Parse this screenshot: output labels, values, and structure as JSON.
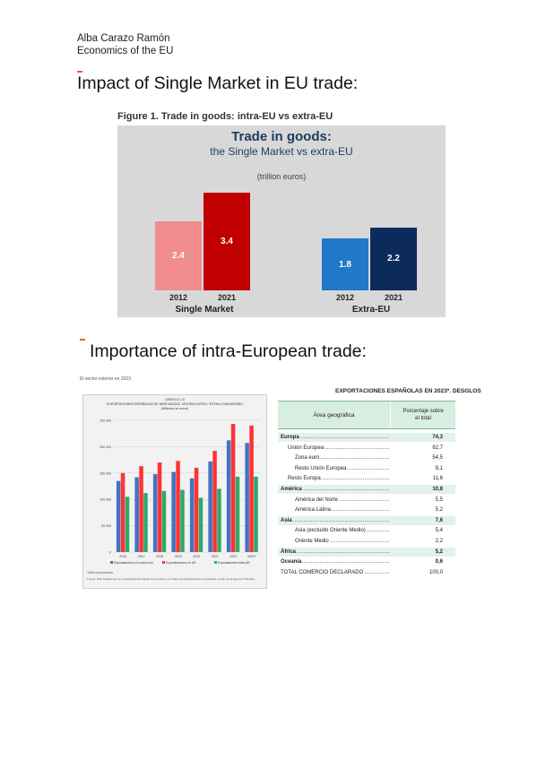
{
  "header": {
    "author": "Alba Carazo Ramón",
    "course": "Economics of the EU"
  },
  "sections": [
    {
      "title": "Impact of  Single Market in EU trade:"
    },
    {
      "title": "Importance of intra-European trade:"
    }
  ],
  "figure1": {
    "caption": "Figure 1. Trade in goods: intra-EU vs extra-EU",
    "title": "Trade in goods:",
    "subtitle": "the Single Market vs extra-EU",
    "unit": "(trillion euros)",
    "groups": [
      {
        "name": "Single Market",
        "bars": [
          {
            "year": "2012",
            "value": 2.4,
            "label": "2.4",
            "color": "#f08c8c"
          },
          {
            "year": "2021",
            "value": 3.4,
            "label": "3.4",
            "color": "#c00000"
          }
        ]
      },
      {
        "name": "Extra-EU",
        "bars": [
          {
            "year": "2012",
            "value": 1.8,
            "label": "1.8",
            "color": "#1f78c8"
          },
          {
            "year": "2021",
            "value": 2.2,
            "label": "2.2",
            "color": "#0d2a5c"
          }
        ]
      }
    ]
  },
  "figure2": {
    "header": "El sector exterior en 2023",
    "g1": "GRÁFICO 1.6",
    "g2": "EXPORTACIONES ESPAÑOLAS DE MERCANCÍAS, DESTINO INTRA Y EXTRA COMUNITARIO",
    "g3": "(Millones de euros)",
    "y_ticks": [
      "250.000",
      "200.000",
      "150.000",
      "100.000",
      "50.000",
      "0"
    ],
    "ymax": 250000,
    "years": [
      "2016",
      "2017",
      "2018",
      "2019",
      "2020",
      "2021",
      "2022",
      "2023*"
    ],
    "series": [
      {
        "name": "Exportaciones a la zona euro",
        "color": "#4472c4",
        "values": [
          135000,
          142000,
          148000,
          152000,
          140000,
          172000,
          212000,
          207000
        ]
      },
      {
        "name": "Exportaciones a la UE",
        "color": "#ff3333",
        "values": [
          150000,
          163000,
          170000,
          173000,
          160000,
          192000,
          243000,
          240000
        ]
      },
      {
        "name": "Exportaciones extra UE",
        "color": "#2eaa6a",
        "values": [
          105000,
          112000,
          116000,
          118000,
          103000,
          120000,
          143000,
          143000
        ]
      }
    ],
    "note": "*Datos provisionales",
    "source": "Fuente: Web DataComex de la Secretaría de Estado de Comercio, con datos del Departamento de Aduanas e II.EE. de la Agencia Tributaria"
  },
  "table": {
    "title": "EXPORTACIONES ESPAÑOLAS  EN 2023*. DESGLOS",
    "col1": "Área geográfica",
    "col2a": "Porcentaje sobre",
    "col2b": "el total",
    "rows": [
      {
        "label": "Europa",
        "value": "74,3",
        "bold": true,
        "indent": 0,
        "shade": true
      },
      {
        "label": "Unión Europea",
        "value": "62,7",
        "bold": false,
        "indent": 1,
        "shade": false
      },
      {
        "label": "Zona euro",
        "value": "54,5",
        "bold": false,
        "indent": 2,
        "shade": false
      },
      {
        "label": "Resto Unión Europea",
        "value": "8,1",
        "bold": false,
        "indent": 2,
        "shade": false
      },
      {
        "label": "Resto Europa",
        "value": "11,6",
        "bold": false,
        "indent": 1,
        "shade": false
      },
      {
        "label": "América",
        "value": "10,8",
        "bold": true,
        "indent": 0,
        "shade": true
      },
      {
        "label": "América del Norte",
        "value": "5,5",
        "bold": false,
        "indent": 2,
        "shade": false
      },
      {
        "label": "América Latina",
        "value": "5,2",
        "bold": false,
        "indent": 2,
        "shade": false
      },
      {
        "label": "Asia",
        "value": "7,6",
        "bold": true,
        "indent": 0,
        "shade": true
      },
      {
        "label": "Asia (excluido Oriente Medio)",
        "value": "5,4",
        "bold": false,
        "indent": 2,
        "shade": false
      },
      {
        "label": "Oriente Medio",
        "value": "2,2",
        "bold": false,
        "indent": 2,
        "shade": false
      },
      {
        "label": "África",
        "value": "5,2",
        "bold": true,
        "indent": 0,
        "shade": true
      },
      {
        "label": "Oceanía",
        "value": "0,6",
        "bold": true,
        "indent": 0,
        "shade": false
      },
      {
        "label": "TOTAL COMERCIO DECLARADO",
        "value": "100,0",
        "bold": false,
        "indent": 0,
        "shade": false
      }
    ]
  }
}
